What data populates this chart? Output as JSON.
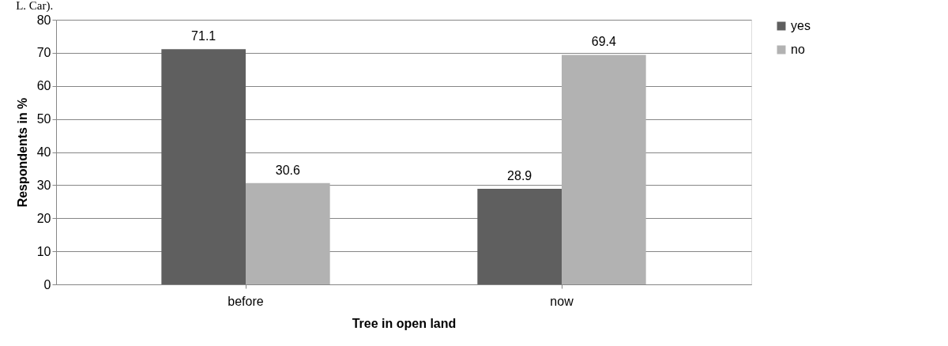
{
  "chart_data": {
    "type": "bar",
    "xlabel": "Tree in open land",
    "ylabel": "Respondents in %",
    "annotations": [
      "L. Car)."
    ],
    "categories": [
      "before",
      "now"
    ],
    "series": [
      {
        "name": "yes",
        "color": "#5f5f5f",
        "values": [
          71.1,
          28.9
        ]
      },
      {
        "name": "no",
        "color": "#b2b2b2",
        "values": [
          30.6,
          69.4
        ]
      }
    ],
    "ylim": [
      0,
      80
    ],
    "yticks": [
      0,
      10,
      20,
      30,
      40,
      50,
      60,
      70,
      80
    ],
    "grid": "y",
    "legend": "right",
    "data_labels": true
  }
}
